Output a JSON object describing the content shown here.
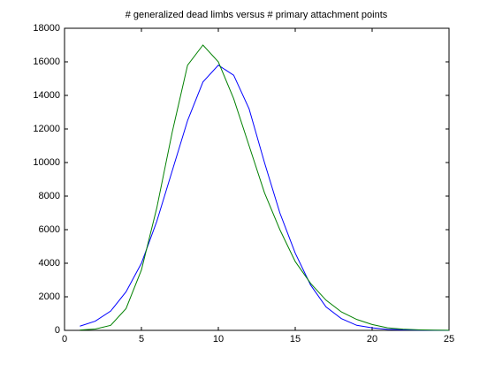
{
  "chart_data": {
    "type": "line",
    "title": "# generalized dead limbs versus # primary attachment points",
    "x": [
      1,
      2,
      3,
      4,
      5,
      6,
      7,
      8,
      9,
      10,
      11,
      12,
      13,
      14,
      15,
      16,
      17,
      18,
      19,
      20,
      21,
      22,
      23,
      24,
      25
    ],
    "series": [
      {
        "color": "#0000ff",
        "values": [
          250,
          550,
          1150,
          2300,
          4000,
          6500,
          9500,
          12500,
          14800,
          15800,
          15200,
          13200,
          10000,
          7000,
          4600,
          2700,
          1400,
          700,
          300,
          150,
          60,
          30,
          10,
          5,
          0
        ]
      },
      {
        "color": "#008000",
        "values": [
          20,
          80,
          300,
          1300,
          3600,
          7300,
          11800,
          15800,
          17000,
          16000,
          13800,
          11000,
          8200,
          6000,
          4100,
          2800,
          1800,
          1100,
          650,
          350,
          150,
          70,
          30,
          10,
          5
        ]
      }
    ],
    "xlim": [
      0,
      25
    ],
    "xticks": [
      0,
      5,
      10,
      15,
      20,
      25
    ],
    "ylim": [
      0,
      18000
    ],
    "yticks": [
      0,
      2000,
      4000,
      6000,
      8000,
      10000,
      12000,
      14000,
      16000,
      18000
    ],
    "grid": false
  }
}
